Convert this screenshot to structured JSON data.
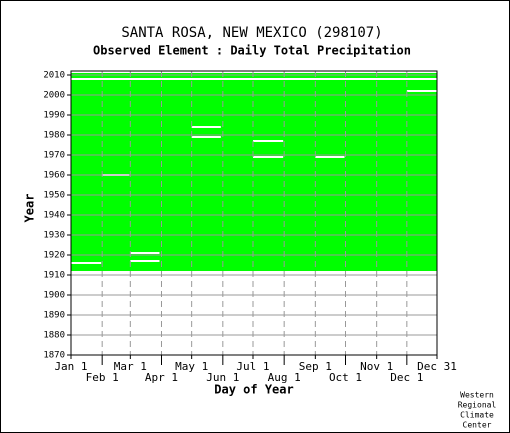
{
  "chart_data": {
    "type": "availability",
    "title": "SANTA ROSA, NEW MEXICO   (298107)",
    "subtitle": "Observed Element : Daily Total Precipitation",
    "x_label": "Day of Year",
    "y_label": "Year",
    "credit": [
      "Western",
      "Regional",
      "Climate",
      "Center"
    ],
    "color": "#00ff00",
    "xlim": [
      1,
      365
    ],
    "ylim": [
      1870,
      2012
    ],
    "xticks": [
      {
        "value": 1,
        "label": "Jan 1"
      },
      {
        "value": 32,
        "label": "Feb 1"
      },
      {
        "value": 60,
        "label": "Mar 1"
      },
      {
        "value": 91,
        "label": "Apr 1"
      },
      {
        "value": 121,
        "label": "May 1"
      },
      {
        "value": 152,
        "label": "Jun 1"
      },
      {
        "value": 182,
        "label": "Jul 1"
      },
      {
        "value": 213,
        "label": "Aug 1"
      },
      {
        "value": 244,
        "label": "Sep 1"
      },
      {
        "value": 274,
        "label": "Oct 1"
      },
      {
        "value": 305,
        "label": "Nov 1"
      },
      {
        "value": 335,
        "label": "Dec 1"
      },
      {
        "value": 365,
        "label": "Dec 31"
      }
    ],
    "yticks": [
      1870,
      1880,
      1890,
      1900,
      1910,
      1920,
      1930,
      1940,
      1950,
      1960,
      1970,
      1980,
      1990,
      2000,
      2010
    ],
    "record": {
      "start_year": 1912,
      "end_year": 2011
    },
    "gaps": [
      {
        "year": 2008,
        "start": 1,
        "end": 365
      },
      {
        "year": 2002,
        "start": 335,
        "end": 365
      },
      {
        "year": 1984,
        "start": 121,
        "end": 150
      },
      {
        "year": 1979,
        "start": 121,
        "end": 150
      },
      {
        "year": 1977,
        "start": 182,
        "end": 212
      },
      {
        "year": 1969,
        "start": 182,
        "end": 212
      },
      {
        "year": 1969,
        "start": 244,
        "end": 273
      },
      {
        "year": 1960,
        "start": 32,
        "end": 59
      },
      {
        "year": 1921,
        "start": 60,
        "end": 89
      },
      {
        "year": 1917,
        "start": 60,
        "end": 89
      },
      {
        "year": 1916,
        "start": 1,
        "end": 31
      }
    ],
    "grid": true
  }
}
